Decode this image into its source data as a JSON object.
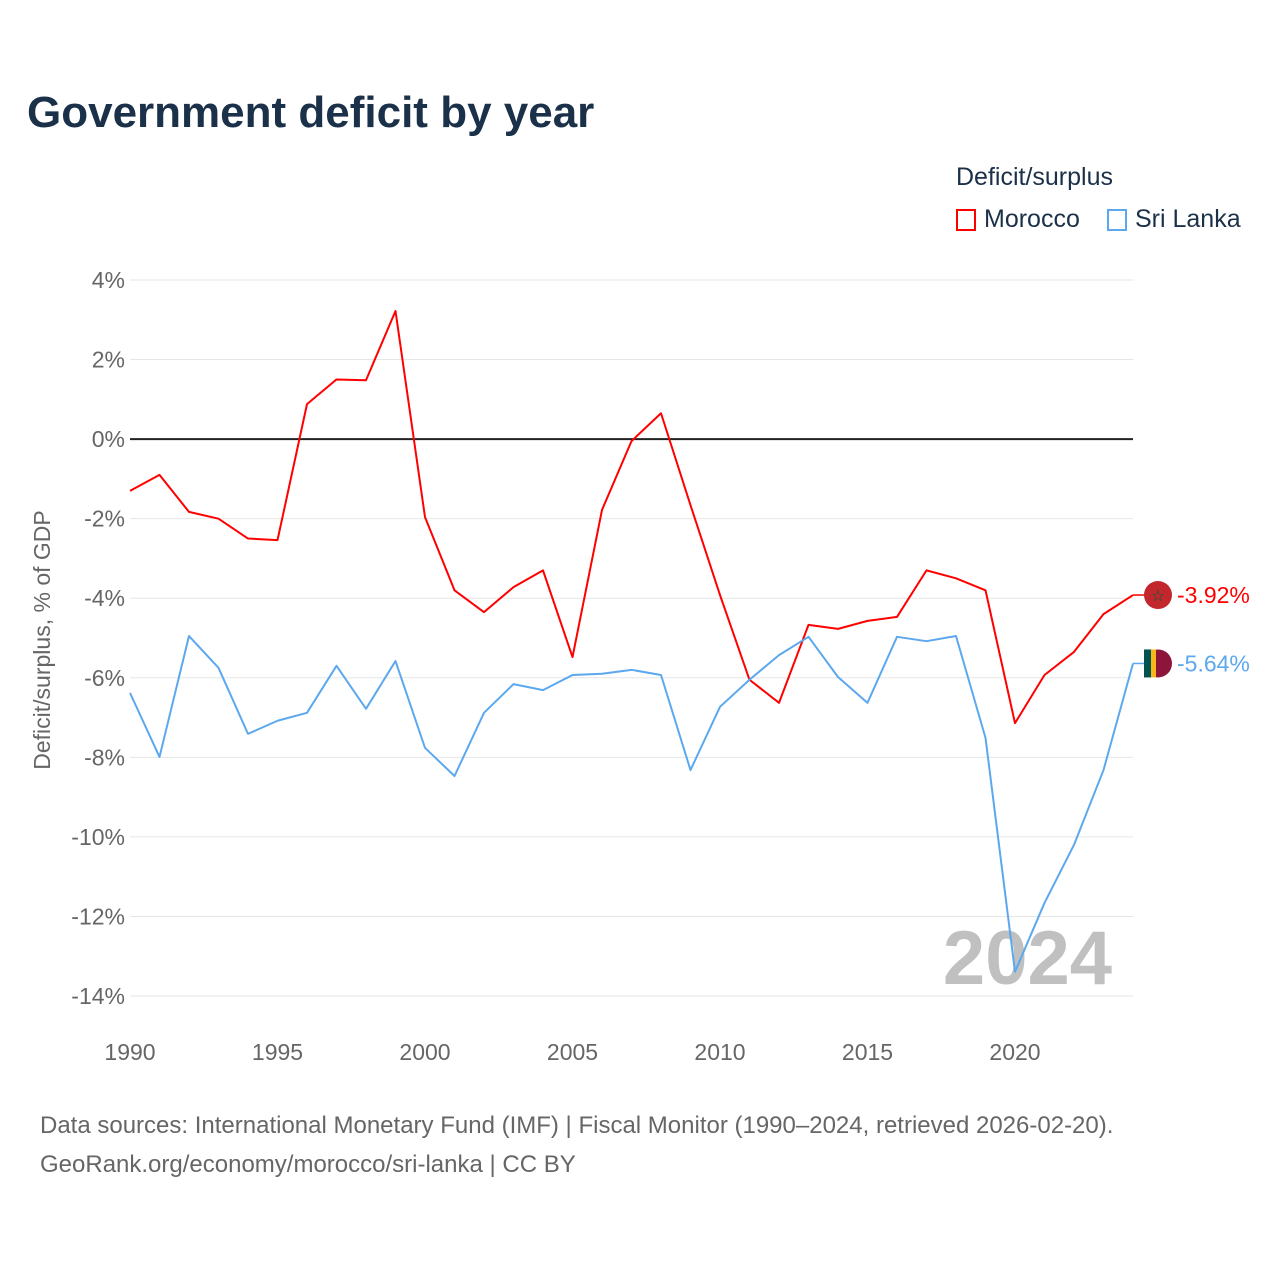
{
  "title": "Government deficit by year",
  "legend": {
    "title": "Deficit/surplus",
    "items": [
      "Morocco",
      "Sri Lanka"
    ]
  },
  "footer": {
    "line1": "Data sources: International Monetary Fund (IMF) | Fiscal Monitor (1990–2024, retrieved 2026-02-20).",
    "line2": "GeoRank.org/economy/morocco/sri-lanka | CC BY"
  },
  "chart_data": {
    "type": "line",
    "title": "Government deficit by year",
    "ylabel": "Deficit/surplus, % of GDP",
    "xlabel": "",
    "xlim": [
      1990,
      2024
    ],
    "ylim": [
      -14,
      4
    ],
    "yticks": [
      4,
      2,
      0,
      -2,
      -4,
      -6,
      -8,
      -10,
      -12,
      -14
    ],
    "ytick_labels": [
      "4%",
      "2%",
      "0%",
      "-2%",
      "-4%",
      "-6%",
      "-8%",
      "-10%",
      "-12%",
      "-14%"
    ],
    "xticks": [
      1990,
      1995,
      2000,
      2005,
      2010,
      2015,
      2020
    ],
    "xtick_labels": [
      "1990",
      "1995",
      "2000",
      "2005",
      "2010",
      "2015",
      "2020"
    ],
    "year_watermark": "2024",
    "grid": true,
    "legend_position": "top-right",
    "x": [
      1990,
      1991,
      1992,
      1993,
      1994,
      1995,
      1996,
      1997,
      1998,
      1999,
      2000,
      2001,
      2002,
      2003,
      2004,
      2005,
      2006,
      2007,
      2008,
      2009,
      2010,
      2011,
      2012,
      2013,
      2014,
      2015,
      2016,
      2017,
      2018,
      2019,
      2020,
      2021,
      2022,
      2023,
      2024
    ],
    "series": [
      {
        "name": "Morocco",
        "color": "#ff0000",
        "end_label": "-3.92%",
        "flag_color": "#c1272d",
        "values": [
          -1.3,
          -0.9,
          -1.83,
          -2.0,
          -2.5,
          -2.54,
          0.88,
          1.5,
          1.48,
          3.22,
          -1.96,
          -3.8,
          -4.35,
          -3.72,
          -3.3,
          -5.48,
          -1.78,
          -0.05,
          0.65,
          -1.66,
          -3.92,
          -6.05,
          -6.63,
          -4.67,
          -4.77,
          -4.57,
          -4.47,
          -3.3,
          -3.5,
          -3.8,
          -7.14,
          -5.93,
          -5.35,
          -4.4,
          -3.92
        ]
      },
      {
        "name": "Sri Lanka",
        "color": "#5ca8ee",
        "end_label": "-5.64%",
        "flag_color": "#8d153a",
        "values": [
          -6.38,
          -7.99,
          -4.95,
          -5.75,
          -7.41,
          -7.08,
          -6.88,
          -5.7,
          -6.78,
          -5.58,
          -7.76,
          -8.47,
          -6.88,
          -6.16,
          -6.31,
          -5.93,
          -5.9,
          -5.8,
          -5.93,
          -8.32,
          -6.73,
          -6.05,
          -5.43,
          -4.97,
          -5.98,
          -6.63,
          -4.97,
          -5.08,
          -4.95,
          -7.51,
          -13.39,
          -11.66,
          -10.2,
          -8.32,
          -5.64
        ]
      }
    ]
  }
}
